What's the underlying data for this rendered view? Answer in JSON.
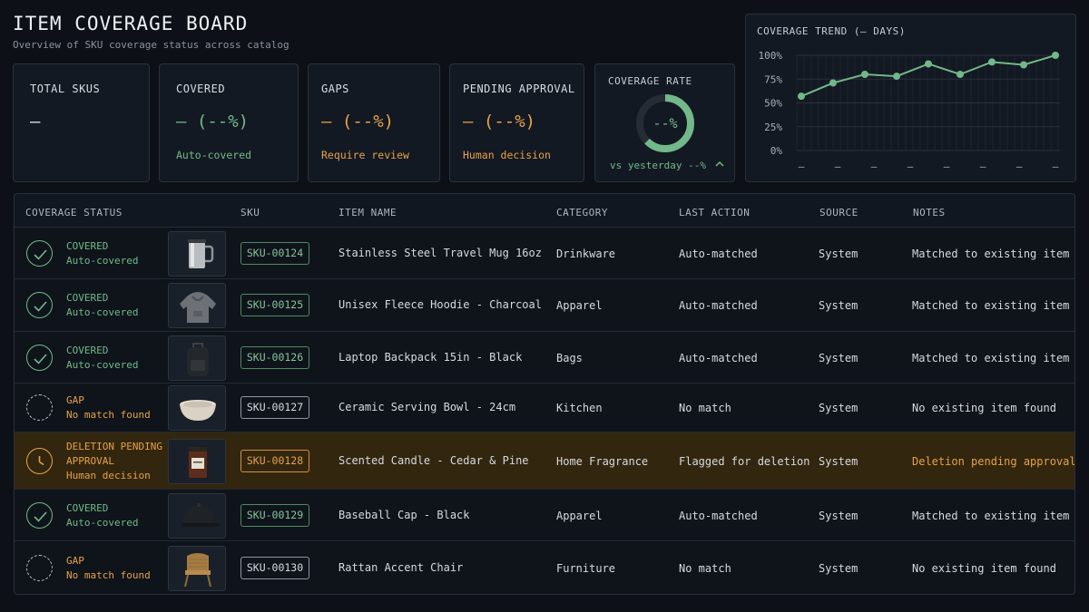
{
  "header": {
    "title": "ITEM COVERAGE BOARD",
    "subtitle": "Overview of SKU coverage status across catalog"
  },
  "stats": {
    "total": {
      "label": "TOTAL SKUS",
      "value": "—"
    },
    "covered": {
      "label": "COVERED",
      "value": "— (--%)",
      "note": "Auto-covered"
    },
    "gaps": {
      "label": "GAPS",
      "value": "— (--%)",
      "note": "Require review"
    },
    "pending": {
      "label": "PENDING APPROVAL",
      "value": "— (--%)",
      "note": "Human decision"
    }
  },
  "rate": {
    "label": "COVERAGE RATE",
    "value": "--%",
    "delta": "vs yesterday --%",
    "delta_icon": "chevron-up-icon"
  },
  "trend": {
    "label": "COVERAGE TREND (— DAYS)",
    "y_ticks": [
      "100%",
      "75%",
      "50%",
      "25%",
      "0%"
    ],
    "x_ticks": [
      "—",
      "—",
      "—",
      "—",
      "—",
      "—",
      "—",
      "—"
    ]
  },
  "chart_data": {
    "type": "line",
    "title": "COVERAGE TREND (— DAYS)",
    "ylim": [
      0,
      100
    ],
    "y_unit": "%",
    "series": [
      {
        "values": [
          57,
          71,
          80,
          78,
          91,
          80,
          93,
          90,
          100
        ]
      }
    ],
    "grid": true
  },
  "table": {
    "columns": [
      "COVERAGE STATUS",
      "SKU",
      "ITEM NAME",
      "CATEGORY",
      "LAST ACTION",
      "SOURCE",
      "NOTES"
    ],
    "rows": [
      {
        "status": "covered",
        "status_title": "COVERED",
        "status_sub": "Auto-covered",
        "thumb": "mug-icon",
        "sku": "SKU-00124",
        "name": "Stainless Steel Travel Mug 16oz",
        "category": "Drinkware",
        "action": "Auto-matched",
        "source": "System",
        "notes": "Matched to existing item"
      },
      {
        "status": "covered",
        "status_title": "COVERED",
        "status_sub": "Auto-covered",
        "thumb": "hoodie-icon",
        "sku": "SKU-00125",
        "name": "Unisex Fleece Hoodie - Charcoal",
        "category": "Apparel",
        "action": "Auto-matched",
        "source": "System",
        "notes": "Matched to existing item"
      },
      {
        "status": "covered",
        "status_title": "COVERED",
        "status_sub": "Auto-covered",
        "thumb": "backpack-icon",
        "sku": "SKU-00126",
        "name": "Laptop Backpack 15in - Black",
        "category": "Bags",
        "action": "Auto-matched",
        "source": "System",
        "notes": "Matched to existing item"
      },
      {
        "status": "gap",
        "status_title": "GAP",
        "status_sub": "No match found",
        "thumb": "bowl-icon",
        "sku": "SKU-00127",
        "name": "Ceramic Serving Bowl - 24cm",
        "category": "Kitchen",
        "action": "No match",
        "source": "System",
        "notes": "No existing item found"
      },
      {
        "status": "pending",
        "status_title": "DELETION PENDING",
        "status_title2": "APPROVAL",
        "status_sub": "Human decision",
        "thumb": "candle-icon",
        "sku": "SKU-00128",
        "name": "Scented Candle - Cedar & Pine",
        "category": "Home Fragrance",
        "action": "Flagged for deletion",
        "source": "System",
        "notes": "Deletion pending approval"
      },
      {
        "status": "covered",
        "status_title": "COVERED",
        "status_sub": "Auto-covered",
        "thumb": "cap-icon",
        "sku": "SKU-00129",
        "name": "Baseball Cap - Black",
        "category": "Apparel",
        "action": "Auto-matched",
        "source": "System",
        "notes": "Matched to existing item"
      },
      {
        "status": "gap",
        "status_title": "GAP",
        "status_sub": "No match found",
        "thumb": "chair-icon",
        "sku": "SKU-00130",
        "name": "Rattan Accent Chair",
        "category": "Furniture",
        "action": "No match",
        "source": "System",
        "notes": "No existing item found"
      }
    ]
  },
  "colors": {
    "bg": "#0d1117",
    "green": "#72b88a",
    "orange": "#e5a24a",
    "pending_row": "#33260f"
  }
}
